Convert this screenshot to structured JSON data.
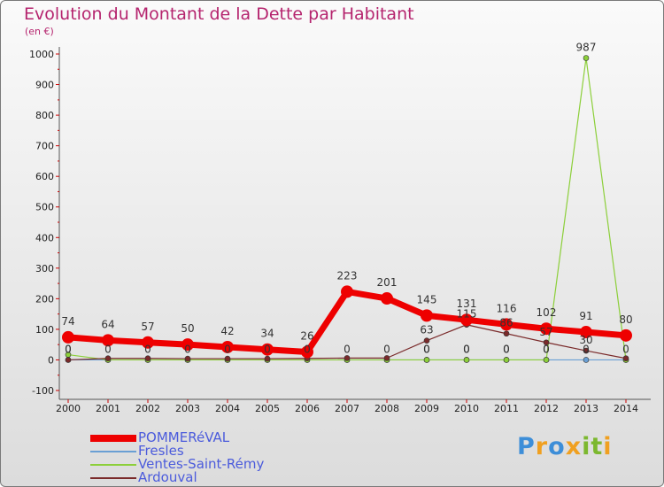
{
  "title": "Evolution du Montant de la Dette par Habitant",
  "unit": "(en €)",
  "logo": {
    "letters": [
      "P",
      "r",
      "o",
      "x",
      "i",
      "t",
      "i"
    ],
    "colors": [
      "#3d8ed8",
      "#f0a020",
      "#3d8ed8",
      "#f0a020",
      "#7cb82f",
      "#7cb82f",
      "#f0a020"
    ]
  },
  "chart_data": {
    "type": "line",
    "title": "Evolution du Montant de la Dette par Habitant",
    "ylabel": "(en €)",
    "xlabel": "",
    "ylim": [
      -100,
      1000
    ],
    "yticks": [
      -100,
      0,
      100,
      200,
      300,
      400,
      500,
      600,
      700,
      800,
      900,
      1000
    ],
    "x": [
      "2000",
      "2001",
      "2002",
      "2003",
      "2004",
      "2005",
      "2006",
      "2007",
      "2008",
      "2009",
      "2010",
      "2011",
      "2012",
      "2013",
      "2014"
    ],
    "grid": false,
    "legend": "bottom-left",
    "series": [
      {
        "name": "POMMERéVAL",
        "color": "#ee0000",
        "thick": true,
        "values": [
          74,
          64,
          57,
          50,
          42,
          34,
          26,
          223,
          201,
          145,
          131,
          116,
          102,
          91,
          80
        ],
        "labels": [
          "74",
          "64",
          "57",
          "50",
          "42",
          "34",
          "26",
          "223",
          "201",
          "145",
          "131",
          "116",
          "102",
          "91",
          "80"
        ]
      },
      {
        "name": "Fresles",
        "color": "#6a9fd4",
        "values": [
          0,
          0,
          0,
          0,
          0,
          0,
          0,
          0,
          0,
          0,
          0,
          0,
          0,
          0,
          0
        ],
        "labels": [
          "0",
          "0",
          "0",
          "0",
          "0",
          "0",
          "0",
          "0",
          "0",
          "0",
          "0",
          "0",
          "0",
          "0",
          "0"
        ]
      },
      {
        "name": "Ventes-Saint-Rémy",
        "color": "#8ccf3a",
        "values": [
          17,
          0,
          0,
          0,
          0,
          0,
          0,
          0,
          0,
          0,
          0,
          0,
          0,
          987,
          0
        ],
        "labels": [
          "",
          "",
          "",
          "",
          "",
          "",
          "",
          "",
          "",
          "0",
          "0",
          "0",
          "0",
          "987",
          ""
        ]
      },
      {
        "name": "Ardouval",
        "color": "#7a2a2a",
        "values": [
          0,
          5,
          5,
          4,
          4,
          4,
          5,
          6,
          6,
          63,
          115,
          86,
          57,
          30,
          5
        ],
        "labels": [
          "0",
          "",
          "",
          "",
          "",
          "",
          "",
          "",
          "",
          "63",
          "115",
          "86",
          "57",
          "30",
          ""
        ]
      }
    ]
  }
}
